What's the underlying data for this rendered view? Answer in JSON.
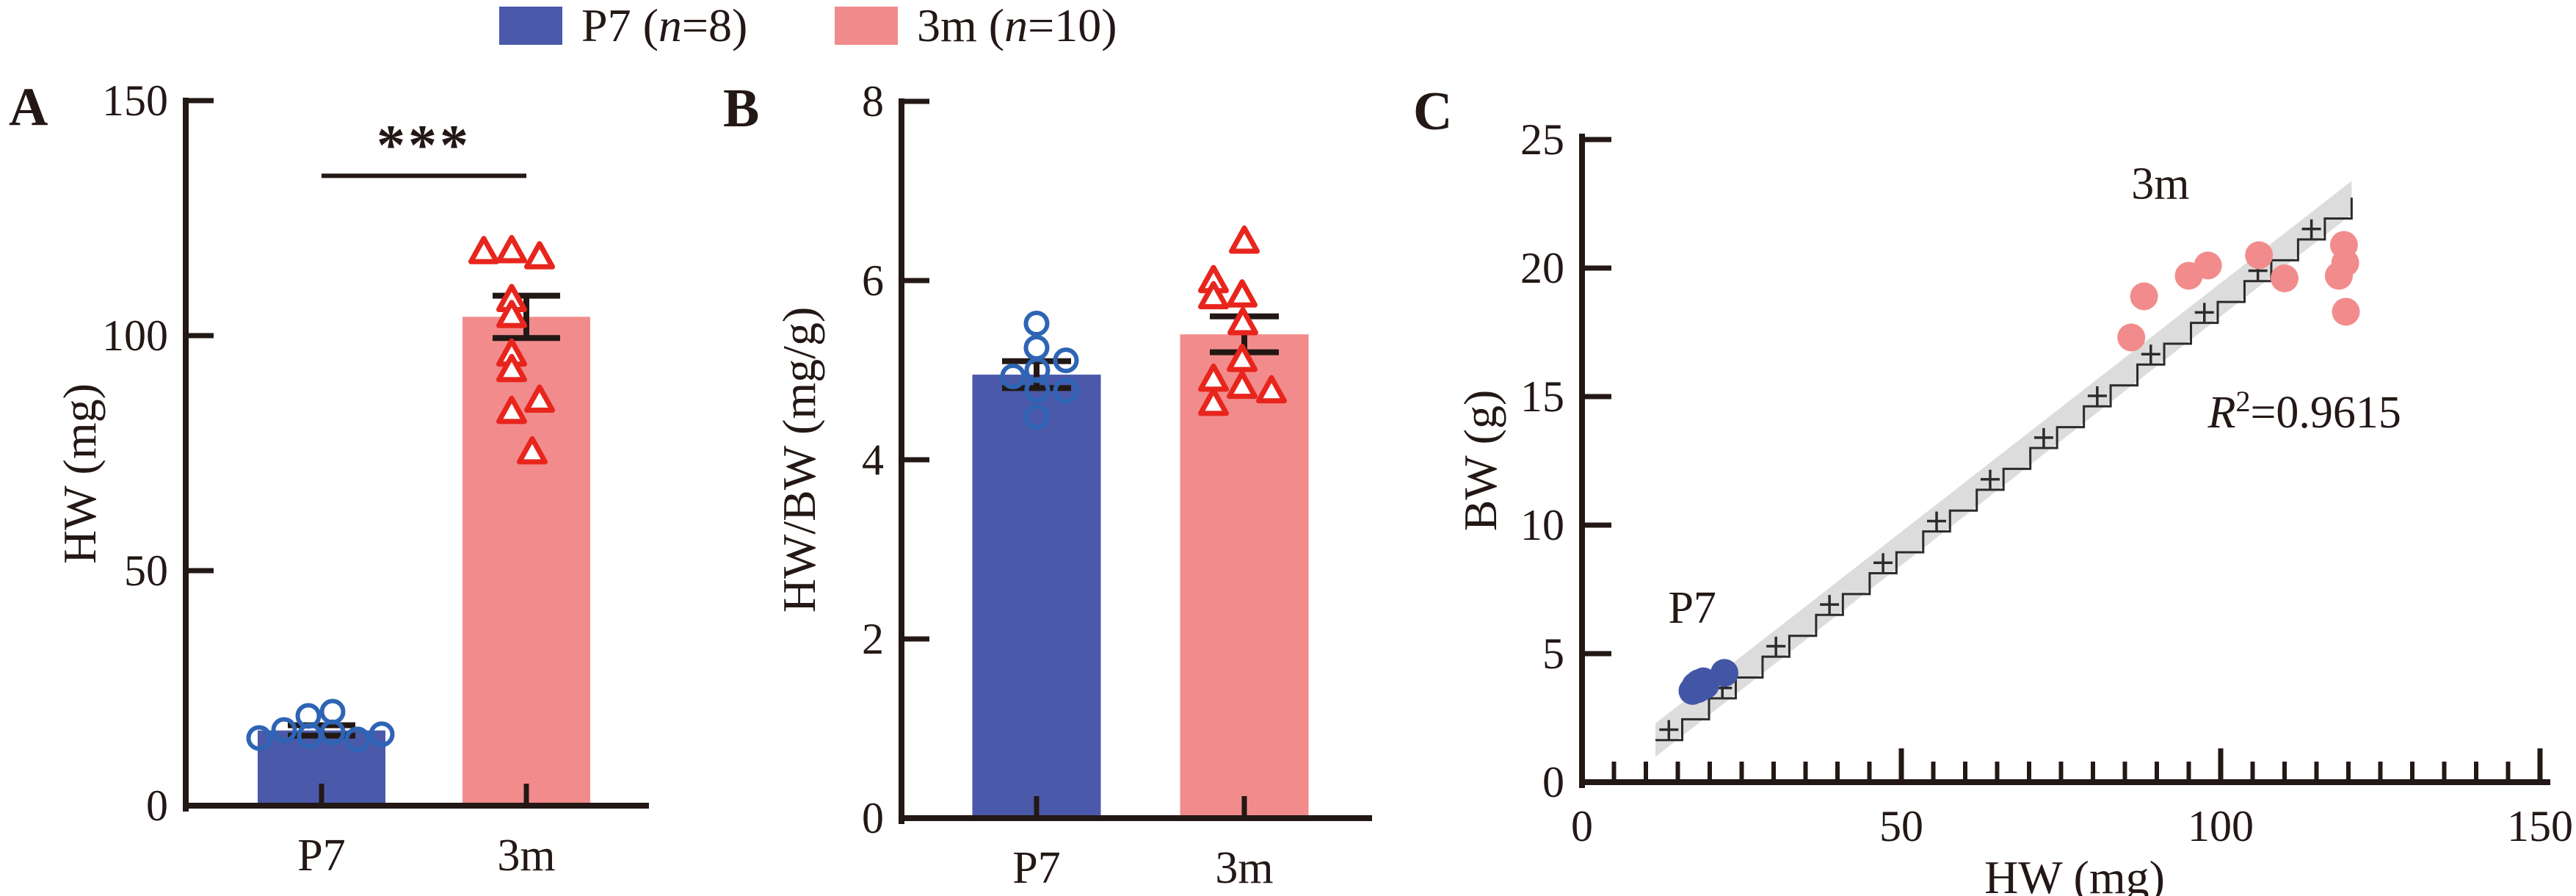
{
  "figure": {
    "background": "#ffffff",
    "text_color": "#231815"
  },
  "colors": {
    "axis": "#231815",
    "band": "#dcdcdc",
    "step_line": "#2b2b2b",
    "blue_fill": "#4a59a9",
    "blue_marker": "#2e64b5",
    "salmon_fill": "#f28c8c",
    "red_marker": "#e8251d"
  },
  "legend": {
    "items": [
      {
        "swatch_color": "#4a59a9",
        "parts": [
          "P7 (",
          "n",
          "=8)"
        ]
      },
      {
        "swatch_color": "#f08a8b",
        "parts": [
          "3m (",
          "n",
          "=10)"
        ]
      }
    ]
  },
  "chart_data": [
    {
      "id": "A",
      "type": "bar",
      "panel_label": "A",
      "ylabel": "HW (mg)",
      "ylim": [
        0,
        150
      ],
      "yticks": [
        0,
        50,
        100,
        150
      ],
      "categories": [
        "P7",
        "3m"
      ],
      "series": [
        {
          "name": "P7",
          "marker": "circle",
          "bar_color": "#4a59a9",
          "marker_color": "#2e64b5",
          "mean": 16,
          "sem": 1.1,
          "points": [
            14.4,
            16.1,
            19.1,
            14.9,
            20,
            15.6,
            14.1,
            15.2
          ]
        },
        {
          "name": "3m",
          "marker": "triangle",
          "bar_color": "#f28c8c",
          "marker_color": "#e8251d",
          "mean": 104,
          "sem": 4.5,
          "points": [
            117.7,
            117.9,
            116.6,
            107.5,
            104.1,
            95.9,
            92.6,
            86.1,
            83.7,
            75.1
          ]
        }
      ],
      "significance": {
        "label": "***",
        "y_value": 134
      }
    },
    {
      "id": "B",
      "type": "bar",
      "panel_label": "B",
      "ylabel": "HW/BW (mg/g)",
      "ylim": [
        0,
        8
      ],
      "yticks": [
        0,
        2,
        4,
        6,
        8
      ],
      "categories": [
        "P7",
        "3m"
      ],
      "series": [
        {
          "name": "P7",
          "marker": "circle",
          "bar_color": "#4a59a9",
          "marker_color": "#2e64b5",
          "mean": 4.95,
          "sem": 0.15,
          "points": [
            5.52,
            5.25,
            5.11,
            5.0,
            4.93,
            4.78,
            4.77,
            4.48
          ]
        },
        {
          "name": "3m",
          "marker": "triangle",
          "bar_color": "#f28c8c",
          "marker_color": "#e8251d",
          "mean": 5.4,
          "sem": 0.2,
          "points": [
            6.43,
            5.99,
            5.83,
            5.81,
            5.52,
            5.11,
            4.89,
            4.81,
            4.76,
            4.62
          ]
        }
      ],
      "significance": null
    },
    {
      "id": "C",
      "type": "scatter",
      "panel_label": "C",
      "xlabel": "HW (mg)",
      "ylabel": "BW (g)",
      "xlim": [
        0,
        150
      ],
      "ylim": [
        0,
        25
      ],
      "xticks": [
        0,
        50,
        100,
        150
      ],
      "yticks": [
        0,
        5,
        10,
        15,
        20,
        25
      ],
      "x_minor_step": 5,
      "series": [
        {
          "name": "P7",
          "color": "#4356a6",
          "label": "P7",
          "label_pos": {
            "x": 13.5,
            "y": 6.2
          },
          "points": [
            [
              17.3,
              3.55
            ],
            [
              17.8,
              3.75
            ],
            [
              18.1,
              3.62
            ],
            [
              18.3,
              3.85
            ],
            [
              18.7,
              3.7
            ],
            [
              19.0,
              3.92
            ],
            [
              19.3,
              3.78
            ],
            [
              22.3,
              4.25
            ]
          ]
        },
        {
          "name": "3m",
          "color": "#f28c8c",
          "label": "3m",
          "label_pos": {
            "x": 86,
            "y": 22.7
          },
          "points": [
            [
              86,
              17.3
            ],
            [
              88,
              18.9
            ],
            [
              95,
              19.7
            ],
            [
              98,
              20.1
            ],
            [
              106,
              20.5
            ],
            [
              110,
              19.6
            ],
            [
              118.5,
              19.7
            ],
            [
              119.3,
              20.9
            ],
            [
              119.5,
              20.2
            ],
            [
              119.6,
              18.3
            ]
          ]
        }
      ],
      "regression": {
        "x_start": 11.5,
        "x_end": 120.5,
        "slope": 0.1936,
        "intercept": -0.59,
        "band_halfwidth": 0.65,
        "r_symbol": "R",
        "r_exponent": "2",
        "r_value": "=0.9615",
        "label_pos": {
          "x": 98,
          "y": 13.8
        }
      }
    }
  ]
}
